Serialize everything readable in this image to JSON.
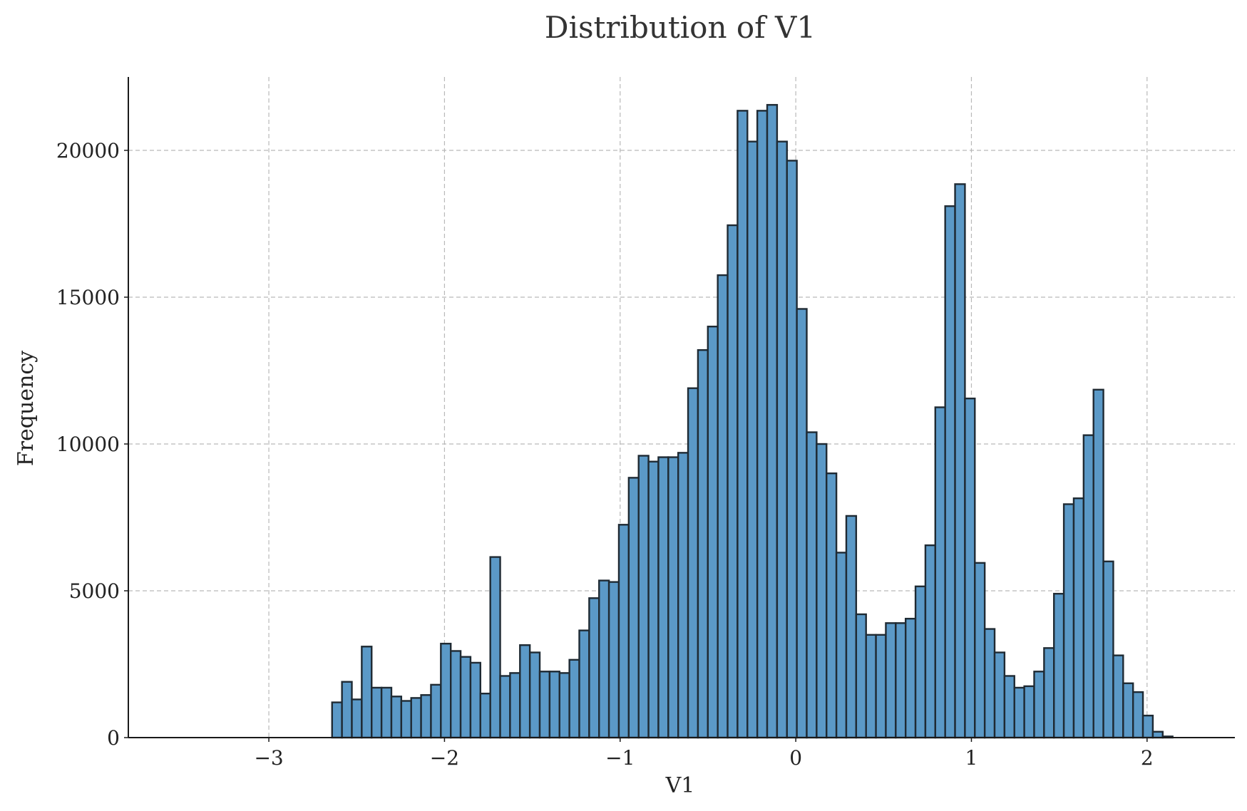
{
  "chart_data": {
    "type": "bar",
    "title": "Distribution of V1",
    "xlabel": "V1",
    "ylabel": "Frequency",
    "xlim": [
      -3.8,
      2.5
    ],
    "ylim": [
      0,
      22500
    ],
    "grid": true,
    "x_ticks": [
      -3,
      -2,
      -1,
      0,
      1,
      2
    ],
    "x_tick_labels": [
      "−3",
      "−2",
      "−1",
      "0",
      "1",
      "2"
    ],
    "y_ticks": [
      0,
      5000,
      10000,
      15000,
      20000
    ],
    "y_tick_labels": [
      "0",
      "5000",
      "10000",
      "15000",
      "20000"
    ],
    "bin_start": -2.64,
    "bin_width": 0.0563,
    "values": [
      1200,
      1900,
      1300,
      3100,
      1700,
      1700,
      1400,
      1250,
      1350,
      1450,
      1800,
      3200,
      2950,
      2750,
      2550,
      1500,
      6150,
      2100,
      2200,
      3150,
      2900,
      2250,
      2250,
      2200,
      2650,
      3650,
      4750,
      5350,
      5300,
      7250,
      8850,
      9600,
      9400,
      9550,
      9550,
      9700,
      11900,
      13200,
      14000,
      15750,
      17450,
      21350,
      20300,
      21350,
      21550,
      20300,
      19650,
      14600,
      10400,
      10000,
      9000,
      6300,
      7550,
      4200,
      3500,
      3500,
      3900,
      3900,
      4050,
      5150,
      6550,
      11250,
      18100,
      18850,
      11550,
      5950,
      3700,
      2900,
      2100,
      1700,
      1750,
      2250,
      3050,
      4900,
      7950,
      8150,
      10300,
      11850,
      6000,
      2800,
      1850,
      1550,
      750,
      200,
      40
    ]
  },
  "colors": {
    "bar_fill": "#5b99c7",
    "bar_edge": "#1f2a33",
    "grid": "#b9b9b9"
  }
}
